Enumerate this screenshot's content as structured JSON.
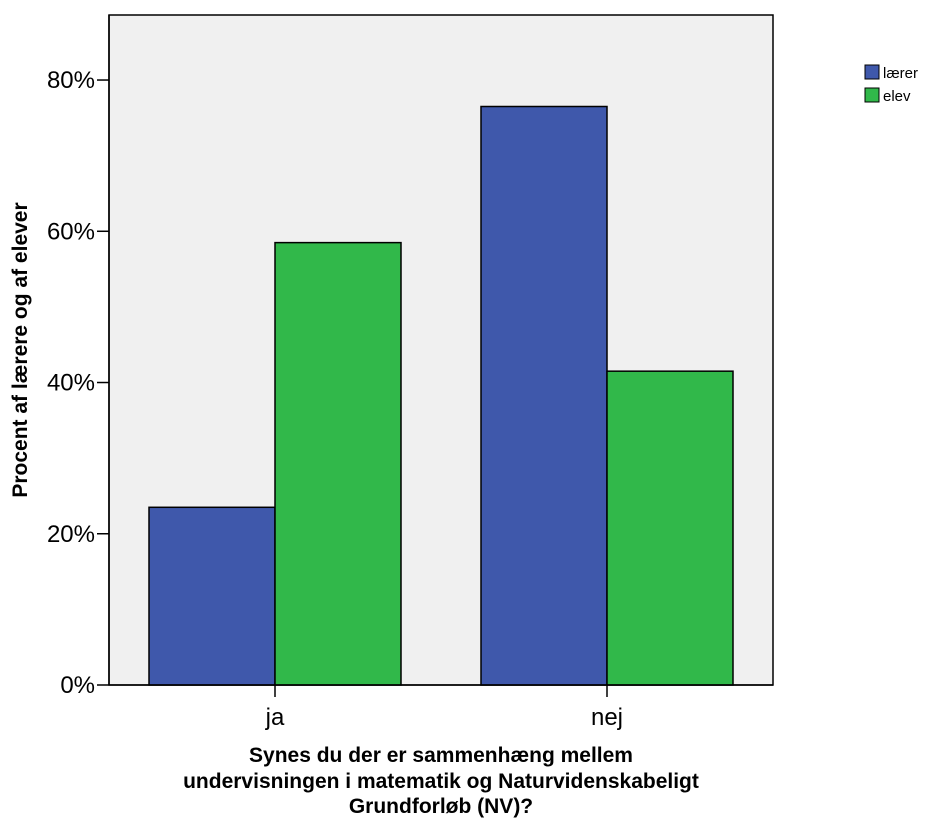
{
  "chart_data": {
    "type": "bar",
    "categories": [
      "ja",
      "nej"
    ],
    "series": [
      {
        "name": "lærer",
        "values": [
          23.5,
          76.5
        ],
        "color": "#3f58ab"
      },
      {
        "name": "elev",
        "values": [
          58.5,
          41.5
        ],
        "color": "#31b84a"
      }
    ],
    "ylabel": "Procent af lærere og af elever",
    "xlabel_lines": [
      "Synes du der er sammenhæng mellem",
      "undervisningen i matematik og Naturvidenskabeligt",
      "Grundforløb (NV)?"
    ],
    "ylim": [
      0,
      88.6
    ],
    "yticks": [
      0,
      20,
      40,
      60,
      80
    ],
    "ytick_labels": [
      "0%",
      "20%",
      "40%",
      "60%",
      "80%"
    ],
    "legend_position": "top-right",
    "plot_background": "#f0f0f0",
    "grid": false
  }
}
